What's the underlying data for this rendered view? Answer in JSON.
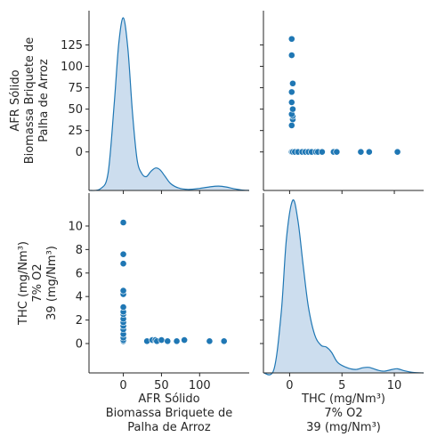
{
  "chart_data": {
    "type": "scatter",
    "variables": [
      {
        "key": "afr",
        "label_lines": [
          "AFR Sólido",
          "Biomassa Briquete de",
          "Palha de Arroz"
        ],
        "range": [
          -45,
          165
        ],
        "ticks": [
          0,
          50,
          100
        ],
        "y_ticks": [
          0,
          25,
          50,
          75,
          100,
          125
        ]
      },
      {
        "key": "thc",
        "label_lines": [
          "THC (mg/Nm³)",
          "7% O2",
          "39 (mg/Nm³)"
        ],
        "range": [
          -2.5,
          12.8
        ],
        "ticks": [
          0,
          5,
          10
        ],
        "y_ticks": [
          0,
          2,
          4,
          6,
          8,
          10
        ]
      }
    ],
    "pairs": [
      [
        0,
        0.2
      ],
      [
        0,
        0.3
      ],
      [
        0,
        0.5
      ],
      [
        0,
        0.8
      ],
      [
        0,
        1.2
      ],
      [
        0,
        1.5
      ],
      [
        0,
        1.8
      ],
      [
        0,
        2.1
      ],
      [
        0,
        2.5
      ],
      [
        0,
        2.7
      ],
      [
        0,
        3.1
      ],
      [
        0,
        4.2
      ],
      [
        0,
        4.5
      ],
      [
        0,
        6.8
      ],
      [
        0,
        7.6
      ],
      [
        0,
        10.3
      ],
      [
        31,
        0.2
      ],
      [
        38,
        0.3
      ],
      [
        42,
        0.3
      ],
      [
        44,
        0.2
      ],
      [
        50,
        0.3
      ],
      [
        58,
        0.2
      ],
      [
        70,
        0.2
      ],
      [
        80,
        0.3
      ],
      [
        113,
        0.2
      ],
      [
        132,
        0.2
      ]
    ],
    "density_diag": {
      "afr": [
        [
          -45,
          0.0
        ],
        [
          -30,
          0.01
        ],
        [
          -20,
          0.1
        ],
        [
          -12,
          0.5
        ],
        [
          -6,
          0.85
        ],
        [
          0,
          1.0
        ],
        [
          6,
          0.82
        ],
        [
          12,
          0.45
        ],
        [
          18,
          0.18
        ],
        [
          24,
          0.1
        ],
        [
          30,
          0.08
        ],
        [
          36,
          0.11
        ],
        [
          42,
          0.13
        ],
        [
          48,
          0.12
        ],
        [
          55,
          0.08
        ],
        [
          62,
          0.04
        ],
        [
          72,
          0.015
        ],
        [
          85,
          0.006
        ],
        [
          100,
          0.012
        ],
        [
          115,
          0.022
        ],
        [
          125,
          0.025
        ],
        [
          135,
          0.02
        ],
        [
          145,
          0.01
        ],
        [
          155,
          0.003
        ],
        [
          165,
          0.0
        ]
      ],
      "thc": [
        [
          -2.5,
          0.0
        ],
        [
          -1.5,
          0.02
        ],
        [
          -0.8,
          0.35
        ],
        [
          -0.3,
          0.78
        ],
        [
          0.3,
          1.0
        ],
        [
          0.8,
          0.88
        ],
        [
          1.3,
          0.62
        ],
        [
          1.8,
          0.38
        ],
        [
          2.4,
          0.22
        ],
        [
          3.0,
          0.16
        ],
        [
          3.5,
          0.15
        ],
        [
          4.0,
          0.12
        ],
        [
          4.6,
          0.06
        ],
        [
          5.5,
          0.03
        ],
        [
          6.3,
          0.02
        ],
        [
          7.0,
          0.03
        ],
        [
          7.6,
          0.032
        ],
        [
          8.3,
          0.018
        ],
        [
          9.0,
          0.01
        ],
        [
          9.8,
          0.02
        ],
        [
          10.3,
          0.024
        ],
        [
          11.0,
          0.012
        ],
        [
          11.8,
          0.003
        ],
        [
          12.8,
          0.0
        ]
      ]
    },
    "colors": {
      "marker": "#1f77b4",
      "marker_edge": "#ffffff",
      "density_fill": "#c6d9ec",
      "density_line": "#1f77b4",
      "text": "#262626"
    }
  }
}
